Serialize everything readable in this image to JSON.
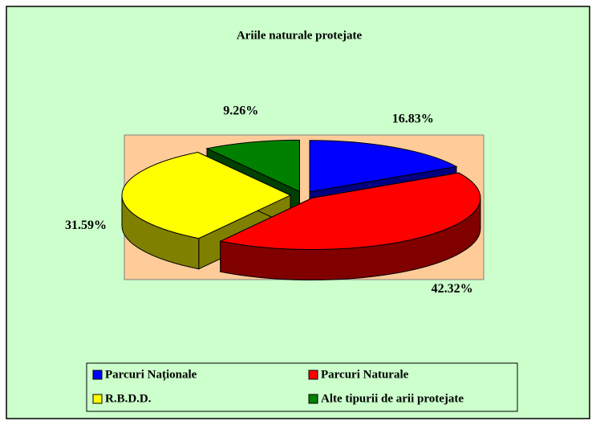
{
  "chart_data": {
    "type": "pie",
    "title": "Ariile naturale protejate",
    "categories": [
      "Parcuri Naționale",
      "Parcuri Naturale",
      "R.B.D.D.",
      "Alte tipurii de arii protejate"
    ],
    "values": [
      16.83,
      42.32,
      31.59,
      9.26
    ],
    "value_labels": [
      "16.83%",
      "42.32%",
      "31.59%",
      "9.26%"
    ],
    "colors": [
      "#0000ff",
      "#ff0000",
      "#ffff00",
      "#008000"
    ],
    "legend": "bottom"
  }
}
